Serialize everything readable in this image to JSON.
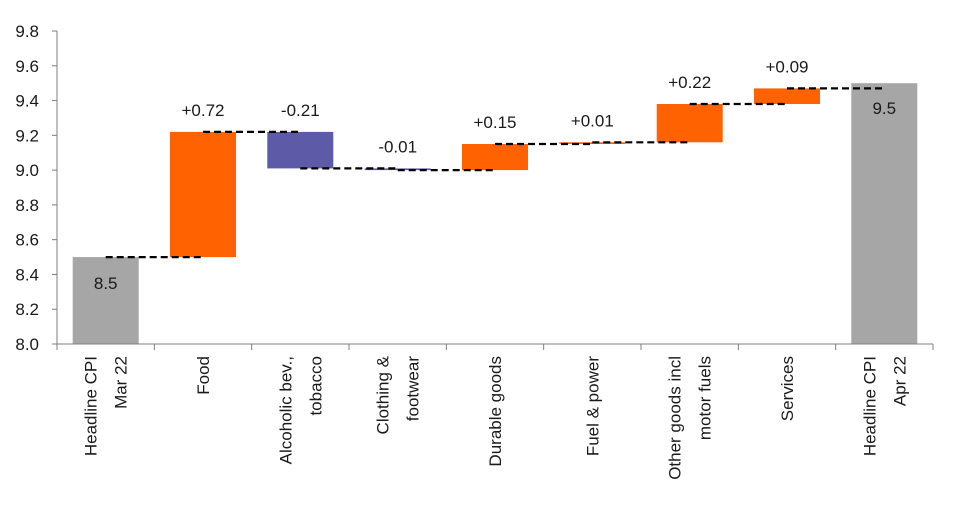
{
  "chart_data": {
    "type": "waterfall",
    "categories": [
      [
        "Headline CPI",
        "Mar 22"
      ],
      [
        "Food"
      ],
      [
        "Alcoholic bev.,",
        "tobacco"
      ],
      [
        "Clothing &",
        "footwear"
      ],
      [
        "Durable goods"
      ],
      [
        "Fuel & power"
      ],
      [
        "Other goods incl",
        "motor fuels"
      ],
      [
        "Services"
      ],
      [
        "Headline CPI",
        "Apr 22"
      ]
    ],
    "kinds": [
      "total",
      "delta",
      "delta",
      "delta",
      "delta",
      "delta",
      "delta",
      "delta",
      "total"
    ],
    "values": [
      8.5,
      0.72,
      -0.21,
      -0.01,
      0.15,
      0.01,
      0.22,
      0.09,
      9.5
    ],
    "data_labels": [
      "8.5",
      "+0.72",
      "-0.21",
      "-0.01",
      "+0.15",
      "+0.01",
      "+0.22",
      "+0.09",
      "9.5"
    ],
    "ylim": [
      8.0,
      9.8
    ],
    "yticks": [
      "8.0",
      "8.2",
      "8.4",
      "8.6",
      "8.8",
      "9.0",
      "9.2",
      "9.4",
      "9.6",
      "9.8"
    ],
    "colors": {
      "total": "#a6a6a6",
      "increase": "#ff6200",
      "decrease": "#5d5ba8",
      "connector": "#000000",
      "axis": "#7f7f7f"
    },
    "connectors": "dashed",
    "grid": false,
    "title": "",
    "xlabel": "",
    "ylabel": ""
  }
}
